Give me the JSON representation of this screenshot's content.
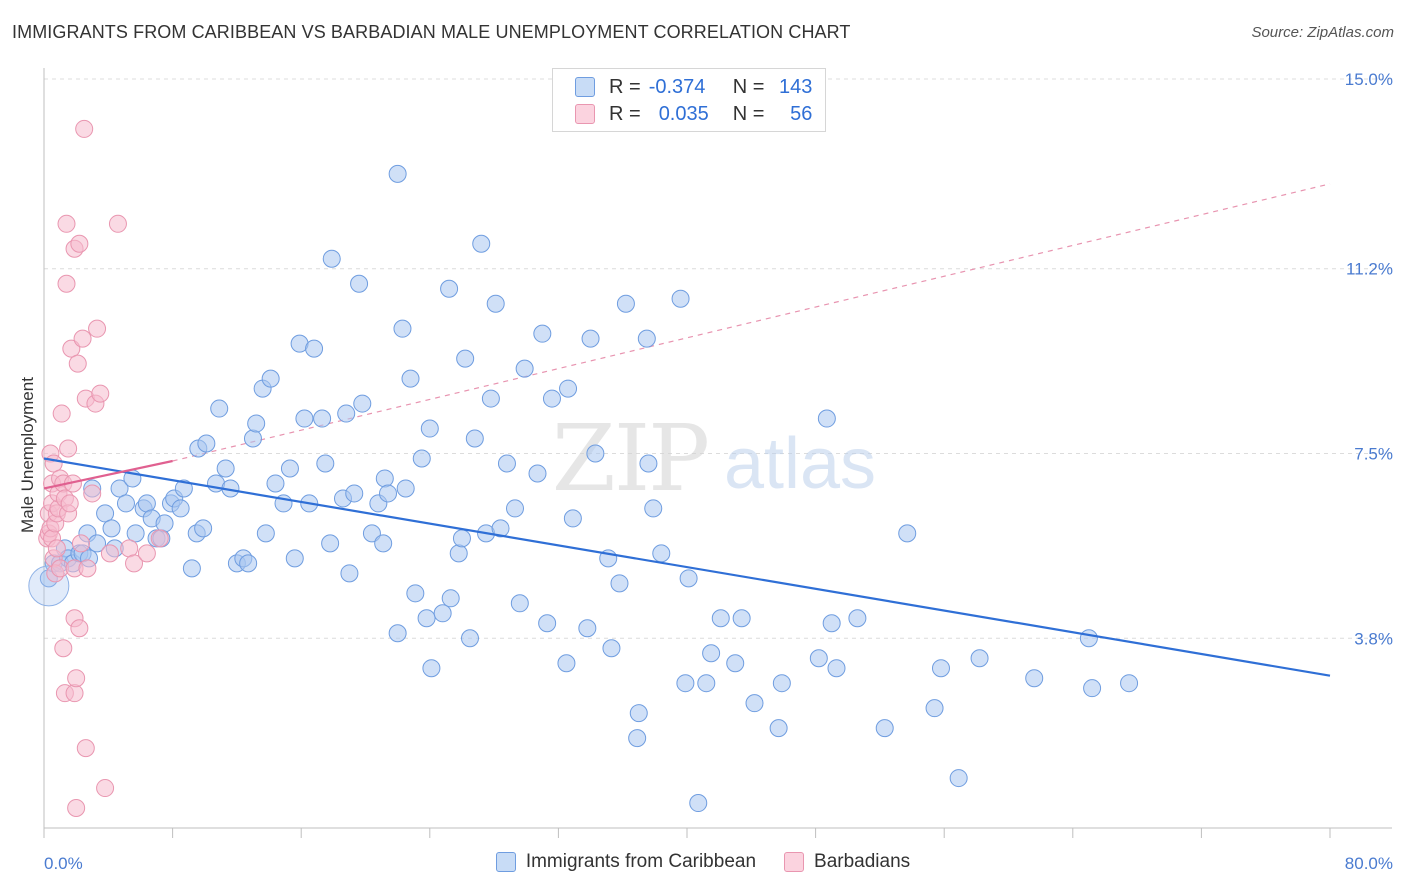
{
  "title": "IMMIGRANTS FROM CARIBBEAN VS BARBADIAN MALE UNEMPLOYMENT CORRELATION CHART",
  "source": "Source: ZipAtlas.com",
  "watermark": {
    "zip": "ZIP",
    "atlas": "atlas"
  },
  "legend": {
    "r_label": "R =",
    "n_label": "N =",
    "rows": [
      {
        "name": "Immigrants from Caribbean",
        "r": "-0.374",
        "n": "143",
        "color": "#a9c6f0",
        "border": "#6f9de0"
      },
      {
        "name": "Barbadians",
        "r": "0.035",
        "n": "56",
        "color": "#f6bccd",
        "border": "#e996b0"
      }
    ]
  },
  "chart_data": {
    "type": "scatter",
    "title": "IMMIGRANTS FROM CARIBBEAN VS BARBADIAN MALE UNEMPLOYMENT CORRELATION CHART",
    "xlabel": "",
    "ylabel": "Male Unemployment",
    "xlim": [
      0,
      80
    ],
    "ylim": [
      0,
      15.0
    ],
    "x_tick_labels": [
      "0.0%",
      "80.0%"
    ],
    "y_ticks": [
      {
        "value": 3.8,
        "label": "3.8%"
      },
      {
        "value": 7.5,
        "label": "7.5%"
      },
      {
        "value": 11.2,
        "label": "11.2%"
      },
      {
        "value": 15.0,
        "label": "15.0%"
      }
    ],
    "series": [
      {
        "name": "Immigrants from Caribbean",
        "color": "#a9c6f0",
        "stroke": "#6f9de0",
        "trend": {
          "x0": 0,
          "y0": 7.4,
          "x1": 80,
          "y1": 3.05,
          "color": "#2f6fd6"
        },
        "points": [
          [
            0.3,
            5.0
          ],
          [
            0.6,
            5.3
          ],
          [
            1.0,
            5.3
          ],
          [
            1.3,
            5.6
          ],
          [
            1.5,
            5.4
          ],
          [
            1.8,
            5.3
          ],
          [
            2.2,
            5.5
          ],
          [
            2.4,
            5.5
          ],
          [
            2.8,
            5.4
          ],
          [
            2.7,
            5.9
          ],
          [
            3.0,
            6.8
          ],
          [
            3.3,
            5.7
          ],
          [
            3.8,
            6.3
          ],
          [
            4.2,
            6.0
          ],
          [
            4.4,
            5.6
          ],
          [
            4.7,
            6.8
          ],
          [
            5.1,
            6.5
          ],
          [
            5.5,
            7.0
          ],
          [
            5.7,
            5.9
          ],
          [
            6.2,
            6.4
          ],
          [
            6.4,
            6.5
          ],
          [
            6.7,
            6.2
          ],
          [
            7.0,
            5.8
          ],
          [
            7.3,
            5.8
          ],
          [
            7.5,
            6.1
          ],
          [
            7.9,
            6.5
          ],
          [
            8.1,
            6.6
          ],
          [
            8.5,
            6.4
          ],
          [
            8.7,
            6.8
          ],
          [
            9.2,
            5.2
          ],
          [
            9.5,
            5.9
          ],
          [
            9.6,
            7.6
          ],
          [
            9.9,
            6.0
          ],
          [
            10.1,
            7.7
          ],
          [
            10.7,
            6.9
          ],
          [
            10.9,
            8.4
          ],
          [
            11.3,
            7.2
          ],
          [
            11.6,
            6.8
          ],
          [
            12.0,
            5.3
          ],
          [
            12.4,
            5.4
          ],
          [
            12.7,
            5.3
          ],
          [
            13.0,
            7.8
          ],
          [
            13.2,
            8.1
          ],
          [
            13.6,
            8.8
          ],
          [
            13.8,
            5.9
          ],
          [
            14.1,
            9.0
          ],
          [
            14.4,
            6.9
          ],
          [
            14.9,
            6.5
          ],
          [
            15.3,
            7.2
          ],
          [
            15.6,
            5.4
          ],
          [
            15.9,
            9.7
          ],
          [
            16.2,
            8.2
          ],
          [
            16.5,
            6.5
          ],
          [
            16.8,
            9.6
          ],
          [
            17.3,
            8.2
          ],
          [
            17.5,
            7.3
          ],
          [
            17.8,
            5.7
          ],
          [
            17.9,
            11.4
          ],
          [
            18.6,
            6.6
          ],
          [
            18.8,
            8.3
          ],
          [
            19.0,
            5.1
          ],
          [
            19.3,
            6.7
          ],
          [
            19.6,
            10.9
          ],
          [
            19.8,
            8.5
          ],
          [
            20.4,
            5.9
          ],
          [
            20.8,
            6.5
          ],
          [
            21.1,
            5.7
          ],
          [
            21.2,
            7.0
          ],
          [
            21.4,
            6.7
          ],
          [
            22.0,
            13.1
          ],
          [
            22.0,
            3.9
          ],
          [
            22.3,
            10.0
          ],
          [
            22.5,
            6.8
          ],
          [
            22.8,
            9.0
          ],
          [
            23.1,
            4.7
          ],
          [
            23.5,
            7.4
          ],
          [
            23.8,
            4.2
          ],
          [
            24.0,
            8.0
          ],
          [
            24.1,
            3.2
          ],
          [
            24.8,
            4.3
          ],
          [
            25.2,
            10.8
          ],
          [
            25.3,
            4.6
          ],
          [
            25.8,
            5.5
          ],
          [
            26.0,
            5.8
          ],
          [
            26.2,
            9.4
          ],
          [
            26.5,
            3.8
          ],
          [
            26.8,
            7.8
          ],
          [
            27.2,
            11.7
          ],
          [
            27.5,
            5.9
          ],
          [
            27.8,
            8.6
          ],
          [
            28.1,
            10.5
          ],
          [
            28.4,
            6.0
          ],
          [
            28.8,
            7.3
          ],
          [
            29.3,
            6.4
          ],
          [
            29.6,
            4.5
          ],
          [
            29.9,
            9.2
          ],
          [
            30.7,
            7.1
          ],
          [
            31.0,
            9.9
          ],
          [
            31.3,
            4.1
          ],
          [
            31.6,
            8.6
          ],
          [
            32.5,
            3.3
          ],
          [
            32.6,
            8.8
          ],
          [
            32.9,
            6.2
          ],
          [
            33.8,
            4.0
          ],
          [
            34.0,
            9.8
          ],
          [
            34.3,
            7.5
          ],
          [
            35.1,
            5.4
          ],
          [
            35.3,
            3.6
          ],
          [
            35.8,
            4.9
          ],
          [
            36.2,
            10.5
          ],
          [
            36.9,
            1.8
          ],
          [
            37.0,
            2.3
          ],
          [
            37.5,
            9.8
          ],
          [
            37.6,
            7.3
          ],
          [
            37.9,
            6.4
          ],
          [
            38.4,
            5.5
          ],
          [
            39.6,
            10.6
          ],
          [
            39.9,
            2.9
          ],
          [
            40.1,
            5.0
          ],
          [
            40.7,
            0.5
          ],
          [
            41.2,
            2.9
          ],
          [
            41.5,
            3.5
          ],
          [
            42.1,
            4.2
          ],
          [
            43.0,
            3.3
          ],
          [
            43.4,
            4.2
          ],
          [
            44.2,
            2.5
          ],
          [
            45.7,
            2.0
          ],
          [
            45.9,
            2.9
          ],
          [
            48.2,
            3.4
          ],
          [
            48.7,
            8.2
          ],
          [
            49.0,
            4.1
          ],
          [
            49.3,
            3.2
          ],
          [
            50.6,
            4.2
          ],
          [
            52.3,
            2.0
          ],
          [
            53.7,
            5.9
          ],
          [
            55.4,
            2.4
          ],
          [
            55.8,
            3.2
          ],
          [
            56.9,
            1.0
          ],
          [
            58.2,
            3.4
          ],
          [
            61.6,
            3.0
          ],
          [
            65.0,
            3.8
          ],
          [
            65.2,
            2.8
          ],
          [
            67.5,
            2.9
          ]
        ]
      },
      {
        "name": "Barbadians",
        "color": "#f6bccd",
        "stroke": "#e996b0",
        "trend": {
          "x0": 0,
          "y0": 6.8,
          "x1": 8.0,
          "y1": 7.35,
          "color": "#e06090"
        },
        "trend_extension": {
          "x0": 8.0,
          "y0": 7.35,
          "x1": 80,
          "y1": 12.9,
          "color": "#e894b0"
        },
        "points": [
          [
            0.2,
            5.8
          ],
          [
            0.3,
            6.3
          ],
          [
            0.3,
            5.9
          ],
          [
            0.4,
            7.5
          ],
          [
            0.4,
            6.0
          ],
          [
            0.5,
            6.9
          ],
          [
            0.5,
            6.5
          ],
          [
            0.5,
            5.8
          ],
          [
            0.6,
            5.4
          ],
          [
            0.6,
            7.3
          ],
          [
            0.7,
            5.1
          ],
          [
            0.7,
            6.1
          ],
          [
            0.8,
            5.6
          ],
          [
            0.8,
            6.3
          ],
          [
            0.9,
            6.4
          ],
          [
            0.9,
            6.7
          ],
          [
            1.0,
            5.2
          ],
          [
            1.0,
            7.0
          ],
          [
            1.1,
            8.3
          ],
          [
            1.2,
            6.9
          ],
          [
            1.2,
            3.6
          ],
          [
            1.3,
            6.6
          ],
          [
            1.3,
            2.7
          ],
          [
            1.4,
            10.9
          ],
          [
            1.4,
            12.1
          ],
          [
            1.5,
            6.3
          ],
          [
            1.5,
            7.6
          ],
          [
            1.6,
            6.5
          ],
          [
            1.7,
            9.6
          ],
          [
            1.8,
            6.9
          ],
          [
            1.9,
            2.7
          ],
          [
            1.9,
            11.6
          ],
          [
            1.9,
            4.2
          ],
          [
            1.9,
            5.2
          ],
          [
            2.0,
            0.4
          ],
          [
            2.0,
            3.0
          ],
          [
            2.1,
            9.3
          ],
          [
            2.2,
            4.0
          ],
          [
            2.2,
            11.7
          ],
          [
            2.3,
            5.7
          ],
          [
            2.4,
            9.8
          ],
          [
            2.5,
            14.0
          ],
          [
            2.6,
            8.6
          ],
          [
            2.6,
            1.6
          ],
          [
            2.7,
            5.2
          ],
          [
            3.0,
            6.7
          ],
          [
            3.2,
            8.5
          ],
          [
            3.3,
            10.0
          ],
          [
            3.5,
            8.7
          ],
          [
            3.8,
            0.8
          ],
          [
            4.1,
            5.5
          ],
          [
            4.6,
            12.1
          ],
          [
            5.3,
            5.6
          ],
          [
            5.6,
            5.3
          ],
          [
            6.4,
            5.5
          ],
          [
            7.2,
            5.8
          ]
        ]
      }
    ]
  }
}
